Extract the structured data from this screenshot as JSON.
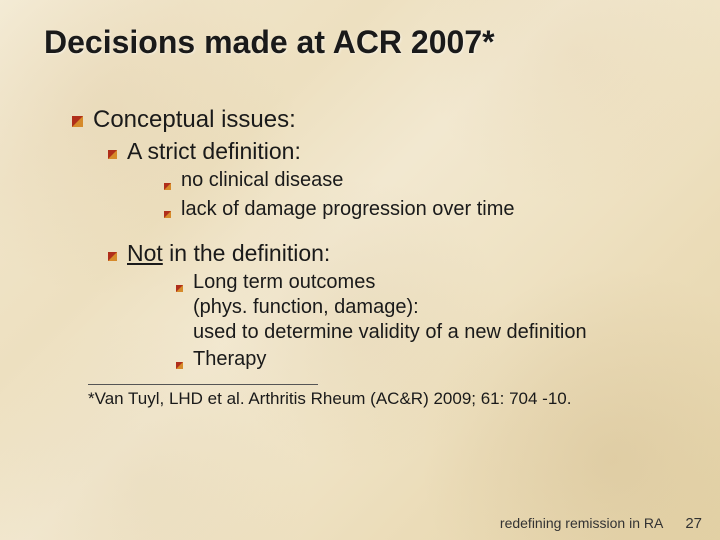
{
  "title": "Decisions made at ACR 2007*",
  "title_fontsize": 32,
  "bullet_colors": {
    "red": "#b02e1a",
    "orange": "#d68a2a"
  },
  "bullet_sizes": {
    "l1": 11,
    "l2": 9,
    "l3": 7
  },
  "lines": {
    "l1a": "Conceptual issues:",
    "l2a": "A strict definition:",
    "l3a": "no clinical disease",
    "l3b": "lack of damage progression over time",
    "l2b_not": "Not",
    "l2b_rest": " in the definition:",
    "l3c_1": "Long term outcomes",
    "l3c_2": "(phys. function, damage):",
    "l3c_3": "used to determine validity of a new definition",
    "l3d": "Therapy"
  },
  "font_sizes": {
    "l1": 24,
    "l2": 23,
    "l3": 20,
    "citation": 17,
    "footer": 14,
    "slidenum": 15
  },
  "citation": "*Van Tuyl, LHD et al. Arthritis Rheum (AC&R) 2009; 61: 704 -10.",
  "footer_text": "redefining remission in RA",
  "slide_number": "27",
  "gap_after_first_block": 14,
  "line_height": 1.25
}
